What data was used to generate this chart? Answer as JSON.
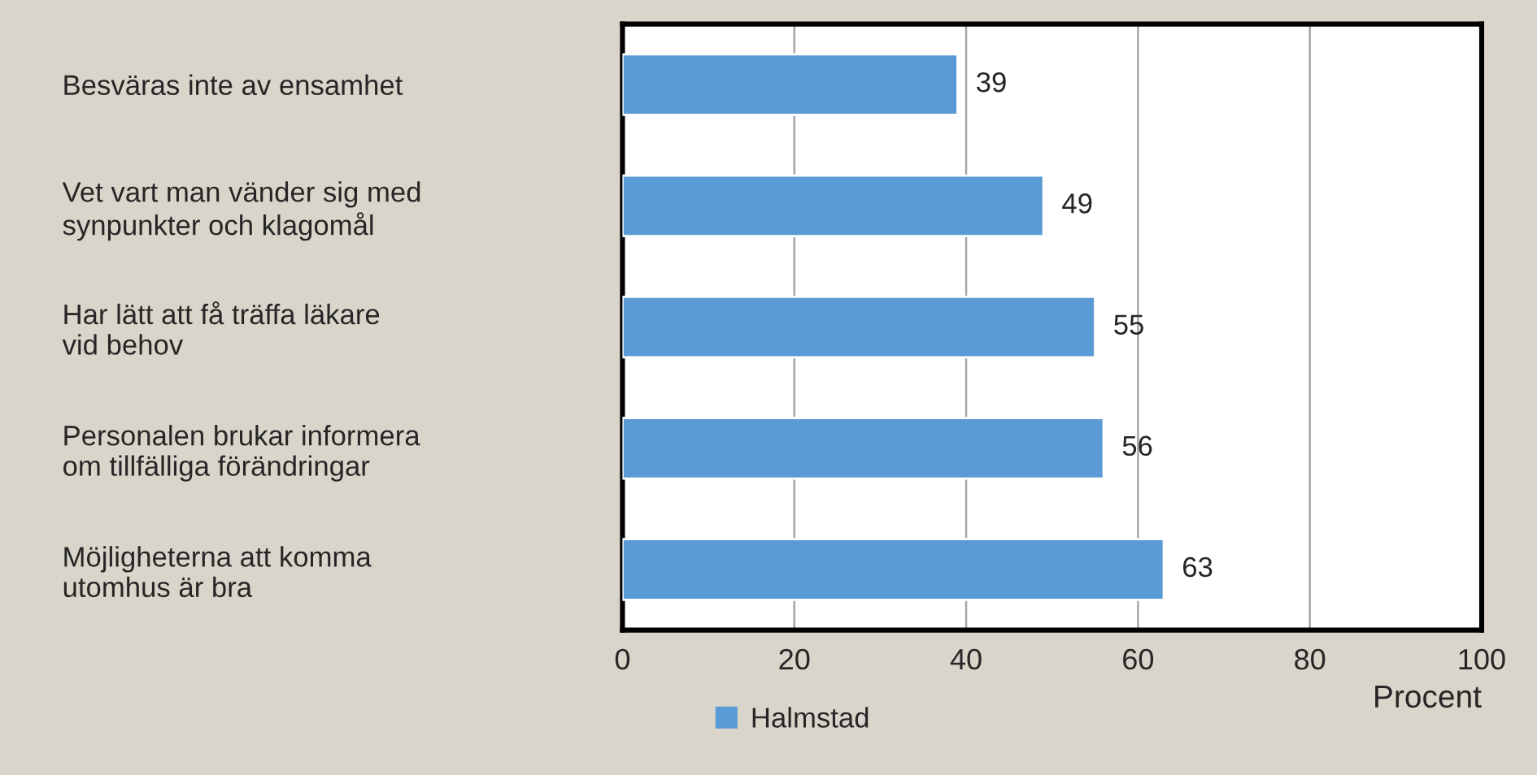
{
  "chart_data": {
    "type": "bar",
    "orientation": "horizontal",
    "xlabel": "Procent",
    "categories": [
      "Besväras inte av ensamhet",
      "Vet vart man vänder sig med\nsynpunkter och klagomål",
      "Har lätt att få träffa läkare\nvid behov",
      "Personalen brukar informera\nom tillfälliga förändringar",
      "Möjligheterna att komma\nutomhus är bra"
    ],
    "series": [
      {
        "name": "Halmstad",
        "color": "#5b9bd5",
        "values": [
          39,
          49,
          55,
          56,
          63
        ]
      }
    ],
    "xlim": [
      0,
      100
    ],
    "xticks": [
      0,
      20,
      40,
      60,
      80,
      100
    ],
    "grid": "x",
    "legend": "bottom",
    "data_labels": true
  }
}
